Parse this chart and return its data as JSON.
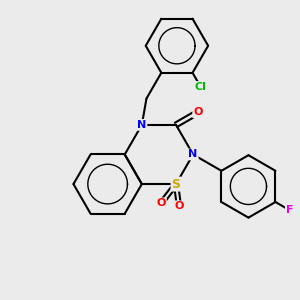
{
  "background_color": "#ebebeb",
  "bond_color": "#000000",
  "bond_width": 1.5,
  "atom_colors": {
    "N": "#0000ff",
    "O": "#ff0000",
    "S": "#ccaa00",
    "Cl": "#00bb00",
    "F": "#ee00ee",
    "C": "#000000"
  },
  "font_size": 8,
  "figsize": [
    3.0,
    3.0
  ],
  "dpi": 100
}
